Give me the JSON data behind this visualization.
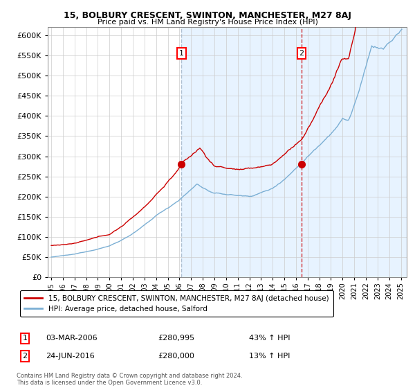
{
  "title": "15, BOLBURY CRESCENT, SWINTON, MANCHESTER, M27 8AJ",
  "subtitle": "Price paid vs. HM Land Registry's House Price Index (HPI)",
  "legend_line1": "15, BOLBURY CRESCENT, SWINTON, MANCHESTER, M27 8AJ (detached house)",
  "legend_line2": "HPI: Average price, detached house, Salford",
  "annotation1_label": "1",
  "annotation1_date": "03-MAR-2006",
  "annotation1_price": "£280,995",
  "annotation1_hpi": "43% ↑ HPI",
  "annotation2_label": "2",
  "annotation2_date": "24-JUN-2016",
  "annotation2_price": "£280,000",
  "annotation2_hpi": "13% ↑ HPI",
  "footer": "Contains HM Land Registry data © Crown copyright and database right 2024.\nThis data is licensed under the Open Government Licence v3.0.",
  "red_color": "#cc0000",
  "blue_color": "#7bafd4",
  "bg_shade_color": "#ddeeff",
  "ylim": [
    0,
    620000
  ],
  "yticks": [
    0,
    50000,
    100000,
    150000,
    200000,
    250000,
    300000,
    350000,
    400000,
    450000,
    500000,
    550000,
    600000
  ],
  "purchase1_x": 2006.17,
  "purchase1_y": 280995,
  "purchase2_x": 2016.48,
  "purchase2_y": 280000,
  "vline1_x": 2006.17,
  "vline2_x": 2016.48,
  "shade_start": 2006.17,
  "shade_end": 2025.5,
  "xmin": 1994.7,
  "xmax": 2025.5
}
